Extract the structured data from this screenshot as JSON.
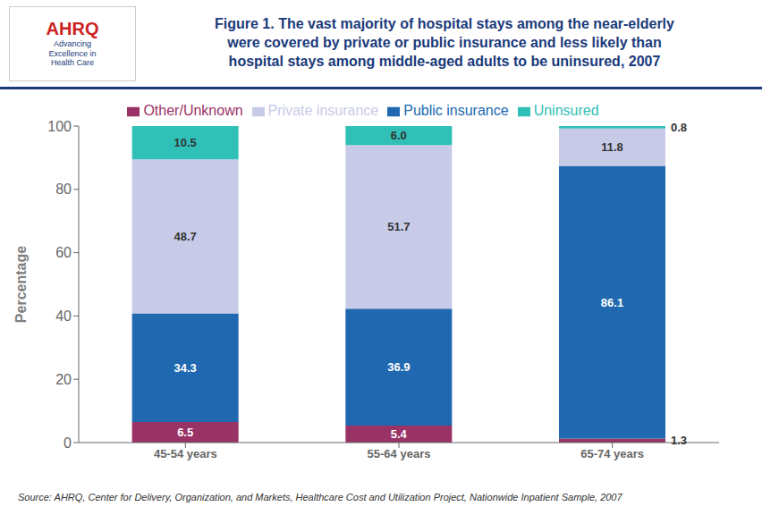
{
  "chart_data": {
    "type": "bar",
    "stacked": true,
    "title": "Figure 1. The vast majority of hospital stays among the near-elderly\nwere covered by private or public insurance and less likely than\nhospital stays among middle-aged adults to be uninsured, 2007",
    "ylabel": "Percentage",
    "categories": [
      "45-54 years",
      "55-64 years",
      "65-74 years"
    ],
    "series": [
      {
        "name": "Other/Unknown",
        "color": "#993366",
        "values": [
          6.5,
          5.4,
          1.3
        ],
        "value_labels": [
          "6.5",
          "5.4",
          "1.3"
        ]
      },
      {
        "name": "Public insurance",
        "color": "#2068B0",
        "values": [
          34.3,
          36.9,
          86.1
        ],
        "value_labels": [
          "34.3",
          "36.9",
          "86.1"
        ]
      },
      {
        "name": "Private insurance",
        "color": "#C8CBE8",
        "values": [
          48.7,
          51.7,
          11.8
        ],
        "value_labels": [
          "48.7",
          "51.7",
          "11.8"
        ]
      },
      {
        "name": "Uninsured",
        "color": "#30C0B8",
        "values": [
          10.5,
          6.0,
          0.8
        ],
        "value_labels": [
          "10.5",
          "6.0",
          "0.8"
        ]
      }
    ],
    "ylim": [
      0,
      100
    ],
    "yticks": [
      0,
      20,
      40,
      60,
      80,
      100
    ],
    "grid": false,
    "legend": "top",
    "data_labels": true,
    "annotations": [
      "AHRQ",
      "Advancing\nExcellence in\nHealth Care",
      "Source: AHRQ, Center for Delivery, Organization, and Markets, Healthcare Cost and Utilization Project, Nationwide Inpatient Sample, 2007"
    ]
  }
}
